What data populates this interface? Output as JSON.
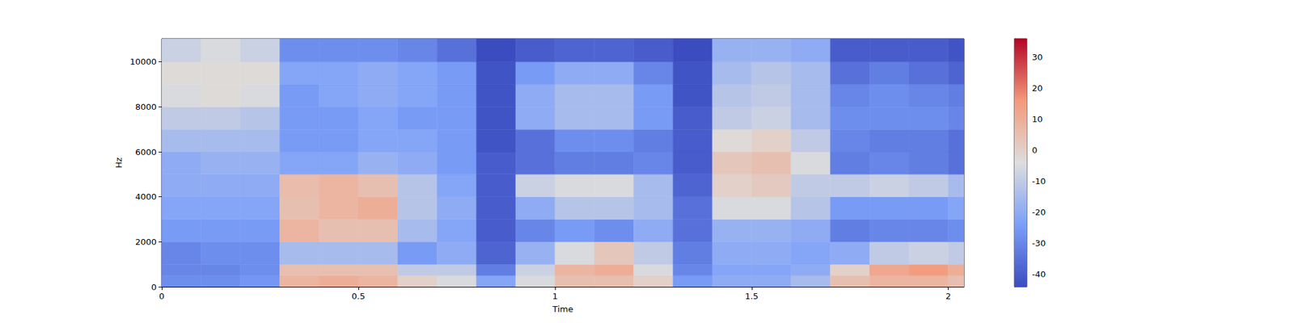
{
  "chart_data": {
    "type": "heatmap",
    "xlabel": "Time",
    "ylabel": "Hz",
    "xlim": [
      0,
      2.04
    ],
    "xticks": [
      0,
      0.5,
      1,
      1.5,
      2
    ],
    "ylim": [
      0,
      11025
    ],
    "yticks": [
      0,
      2000,
      4000,
      6000,
      8000,
      10000
    ],
    "cells": {
      "x_edges": [
        0,
        0.1,
        0.2,
        0.3,
        0.4,
        0.5,
        0.6,
        0.7,
        0.8,
        0.9,
        1.0,
        1.1,
        1.2,
        1.3,
        1.4,
        1.5,
        1.6,
        1.7,
        1.8,
        1.9,
        2.0,
        2.04
      ],
      "y_edges": [
        0,
        500,
        1000,
        2000,
        3000,
        4000,
        5000,
        6000,
        7000,
        8000,
        9000,
        10000,
        11025
      ],
      "values": [
        [
          -28,
          -28,
          -26,
          8,
          10,
          8,
          0,
          -5,
          -22,
          -5,
          5,
          5,
          0,
          -25,
          -20,
          -20,
          -15,
          5,
          8,
          8,
          5
        ],
        [
          -30,
          -30,
          -28,
          5,
          5,
          5,
          -10,
          -10,
          -32,
          -8,
          8,
          10,
          -5,
          -30,
          -22,
          -22,
          -20,
          0,
          12,
          15,
          10
        ],
        [
          -30,
          -28,
          -28,
          -15,
          -15,
          -15,
          -25,
          -20,
          -38,
          -18,
          -5,
          3,
          -10,
          -32,
          -20,
          -20,
          -22,
          -20,
          -10,
          -8,
          -10
        ],
        [
          -25,
          -25,
          -25,
          8,
          5,
          5,
          -15,
          -22,
          -40,
          -30,
          -25,
          -28,
          -20,
          -35,
          -18,
          -18,
          -20,
          -32,
          -30,
          -30,
          -28
        ],
        [
          -22,
          -22,
          -22,
          5,
          8,
          10,
          -12,
          -20,
          -40,
          -20,
          -12,
          -12,
          -15,
          -35,
          -5,
          -5,
          -12,
          -25,
          -25,
          -25,
          -22
        ],
        [
          -20,
          -20,
          -20,
          6,
          8,
          5,
          -12,
          -22,
          -40,
          -8,
          -5,
          -5,
          -15,
          -38,
          0,
          2,
          -10,
          -10,
          -8,
          -10,
          -15
        ],
        [
          -20,
          -18,
          -18,
          -22,
          -22,
          -18,
          -20,
          -25,
          -40,
          -35,
          -32,
          -32,
          -30,
          -40,
          3,
          5,
          -5,
          -32,
          -30,
          -32,
          -35
        ],
        [
          -15,
          -15,
          -15,
          -25,
          -25,
          -22,
          -22,
          -25,
          -42,
          -35,
          -28,
          -28,
          -32,
          -40,
          -3,
          0,
          -10,
          -30,
          -32,
          -32,
          -35
        ],
        [
          -10,
          -10,
          -12,
          -25,
          -25,
          -22,
          -25,
          -25,
          -42,
          -20,
          -15,
          -15,
          -25,
          -40,
          -10,
          -8,
          -15,
          -28,
          -28,
          -28,
          -30
        ],
        [
          -5,
          -3,
          -5,
          -25,
          -22,
          -20,
          -22,
          -25,
          -42,
          -20,
          -15,
          -15,
          -25,
          -42,
          -12,
          -10,
          -15,
          -30,
          -28,
          -30,
          -32
        ],
        [
          -3,
          -3,
          -3,
          -22,
          -22,
          -20,
          -22,
          -25,
          -42,
          -25,
          -20,
          -20,
          -30,
          -42,
          -15,
          -12,
          -15,
          -35,
          -32,
          -35,
          -38
        ],
        [
          -8,
          -5,
          -8,
          -28,
          -28,
          -28,
          -30,
          -35,
          -44,
          -40,
          -38,
          -38,
          -40,
          -44,
          -18,
          -18,
          -20,
          -40,
          -40,
          -40,
          -42
        ]
      ]
    },
    "colorbar": {
      "lim": [
        -44,
        36
      ],
      "ticks": [
        -40,
        -30,
        -20,
        -10,
        0,
        10,
        20,
        30
      ]
    }
  }
}
